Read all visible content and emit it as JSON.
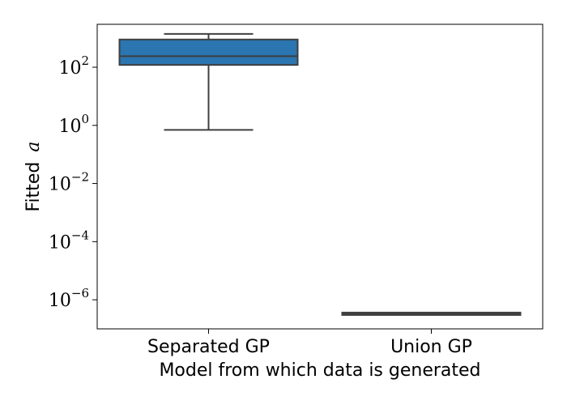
{
  "chart_data": {
    "type": "box",
    "xlabel": "Model from which data is generated",
    "ylabel": "Fitted",
    "ylabel_math": "a",
    "yscale": "log",
    "ylim": [
      1e-07,
      3000
    ],
    "yticks": [
      {
        "value": 100.0,
        "base": "10",
        "exp": "2"
      },
      {
        "value": 1.0,
        "base": "10",
        "exp": "0"
      },
      {
        "value": 0.01,
        "base": "10",
        "exp": "−2"
      },
      {
        "value": 0.0001,
        "base": "10",
        "exp": "−4"
      },
      {
        "value": 1e-06,
        "base": "10",
        "exp": "−6"
      }
    ],
    "categories": [
      "Separated GP",
      "Union GP"
    ],
    "boxes": [
      {
        "category": "Separated GP",
        "whisker_low": 0.7,
        "q1": 120,
        "median": 240,
        "q3": 900,
        "whisker_high": 1400,
        "color": "#2b75b0"
      },
      {
        "category": "Union GP",
        "whisker_low": 3.3e-07,
        "q1": 3.3e-07,
        "median": 3.3e-07,
        "q3": 3.3e-07,
        "whisker_high": 3.3e-07,
        "color": "#e38a2f"
      }
    ],
    "grid": false,
    "legend": "none"
  }
}
